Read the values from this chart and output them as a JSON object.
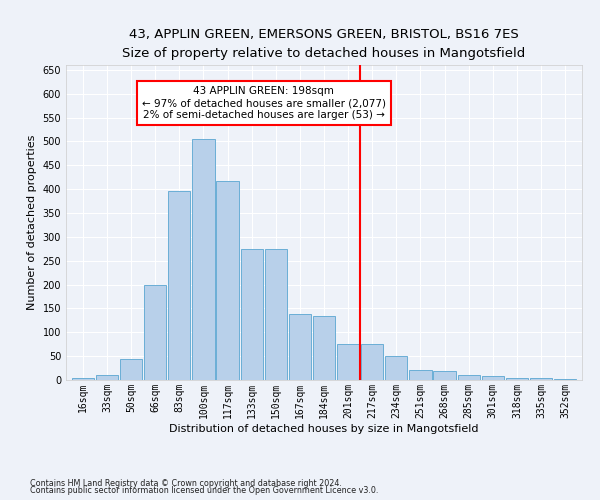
{
  "title_line1": "43, APPLIN GREEN, EMERSONS GREEN, BRISTOL, BS16 7ES",
  "title_line2": "Size of property relative to detached houses in Mangotsfield",
  "xlabel": "Distribution of detached houses by size in Mangotsfield",
  "ylabel": "Number of detached properties",
  "footnote1": "Contains HM Land Registry data © Crown copyright and database right 2024.",
  "footnote2": "Contains public sector information licensed under the Open Government Licence v3.0.",
  "bar_labels": [
    "16sqm",
    "33sqm",
    "50sqm",
    "66sqm",
    "83sqm",
    "100sqm",
    "117sqm",
    "133sqm",
    "150sqm",
    "167sqm",
    "184sqm",
    "201sqm",
    "217sqm",
    "234sqm",
    "251sqm",
    "268sqm",
    "285sqm",
    "301sqm",
    "318sqm",
    "335sqm",
    "352sqm"
  ],
  "bar_values": [
    5,
    10,
    45,
    200,
    395,
    505,
    418,
    275,
    275,
    138,
    135,
    75,
    75,
    50,
    22,
    18,
    10,
    8,
    5,
    5,
    2
  ],
  "bar_color": "#b8d0ea",
  "bar_edgecolor": "#6aaed6",
  "vline_x": 11.5,
  "vline_color": "red",
  "annotation_text": "43 APPLIN GREEN: 198sqm\n← 97% of detached houses are smaller (2,077)\n2% of semi-detached houses are larger (53) →",
  "annotation_box_color": "white",
  "annotation_box_edgecolor": "red",
  "ylim": [
    0,
    660
  ],
  "yticks": [
    0,
    50,
    100,
    150,
    200,
    250,
    300,
    350,
    400,
    450,
    500,
    550,
    600,
    650
  ],
  "background_color": "#eef2f9",
  "grid_color": "white",
  "title_fontsize": 9.5,
  "subtitle_fontsize": 8.5,
  "ylabel_fontsize": 8,
  "xlabel_fontsize": 8,
  "tick_fontsize": 7,
  "annot_fontsize": 7.5,
  "footnote_fontsize": 5.8
}
